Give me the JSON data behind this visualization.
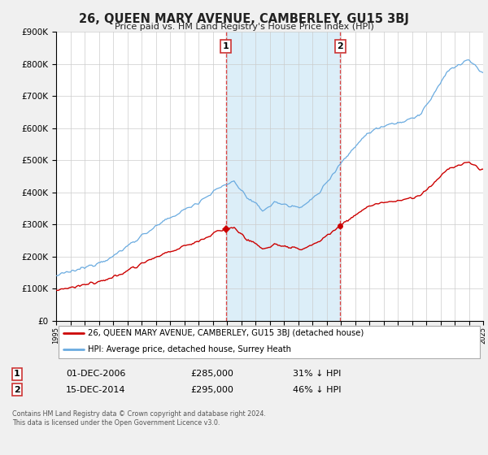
{
  "title": "26, QUEEN MARY AVENUE, CAMBERLEY, GU15 3BJ",
  "subtitle": "Price paid vs. HM Land Registry's House Price Index (HPI)",
  "legend_line1": "26, QUEEN MARY AVENUE, CAMBERLEY, GU15 3BJ (detached house)",
  "legend_line2": "HPI: Average price, detached house, Surrey Heath",
  "sale1_date": "01-DEC-2006",
  "sale1_price": "£285,000",
  "sale1_pct": "31% ↓ HPI",
  "sale2_date": "15-DEC-2014",
  "sale2_price": "£295,000",
  "sale2_pct": "46% ↓ HPI",
  "footnote": "Contains HM Land Registry data © Crown copyright and database right 2024.\nThis data is licensed under the Open Government Licence v3.0.",
  "ylim": [
    0,
    900000
  ],
  "sale1_year": 2006.917,
  "sale2_year": 2014.958,
  "hpi_color": "#6aabe0",
  "price_color": "#cc0000",
  "shade_color": "#dceef8",
  "plot_bg": "#ffffff",
  "fig_bg": "#f0f0f0",
  "grid_color": "#cccccc"
}
